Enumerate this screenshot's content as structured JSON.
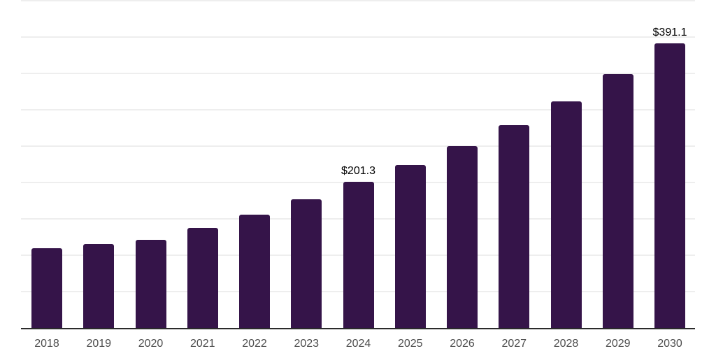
{
  "chart_data": {
    "type": "bar",
    "title": "",
    "xlabel": "",
    "ylabel": "",
    "categories": [
      "2018",
      "2019",
      "2020",
      "2021",
      "2022",
      "2023",
      "2024",
      "2025",
      "2026",
      "2027",
      "2028",
      "2029",
      "2030"
    ],
    "values": [
      109.6,
      115.4,
      121.2,
      137.5,
      155.8,
      176.9,
      201.3,
      224.1,
      250.0,
      278.9,
      311.6,
      349.1,
      391.1
    ],
    "data_labels": [
      "",
      "",
      "",
      "",
      "",
      "",
      "$201.3",
      "",
      "",
      "",
      "",
      "",
      "$391.1"
    ],
    "ylim": [
      0,
      451
    ],
    "grid": true,
    "gridline_step": 50,
    "legend_position": "none",
    "bar_color": "#351449",
    "gridline_color": "#eeeeee",
    "axis_line_color": "#2b2b2b",
    "tick_label_color": "#4d4d4d",
    "data_label_color": "#000000"
  }
}
